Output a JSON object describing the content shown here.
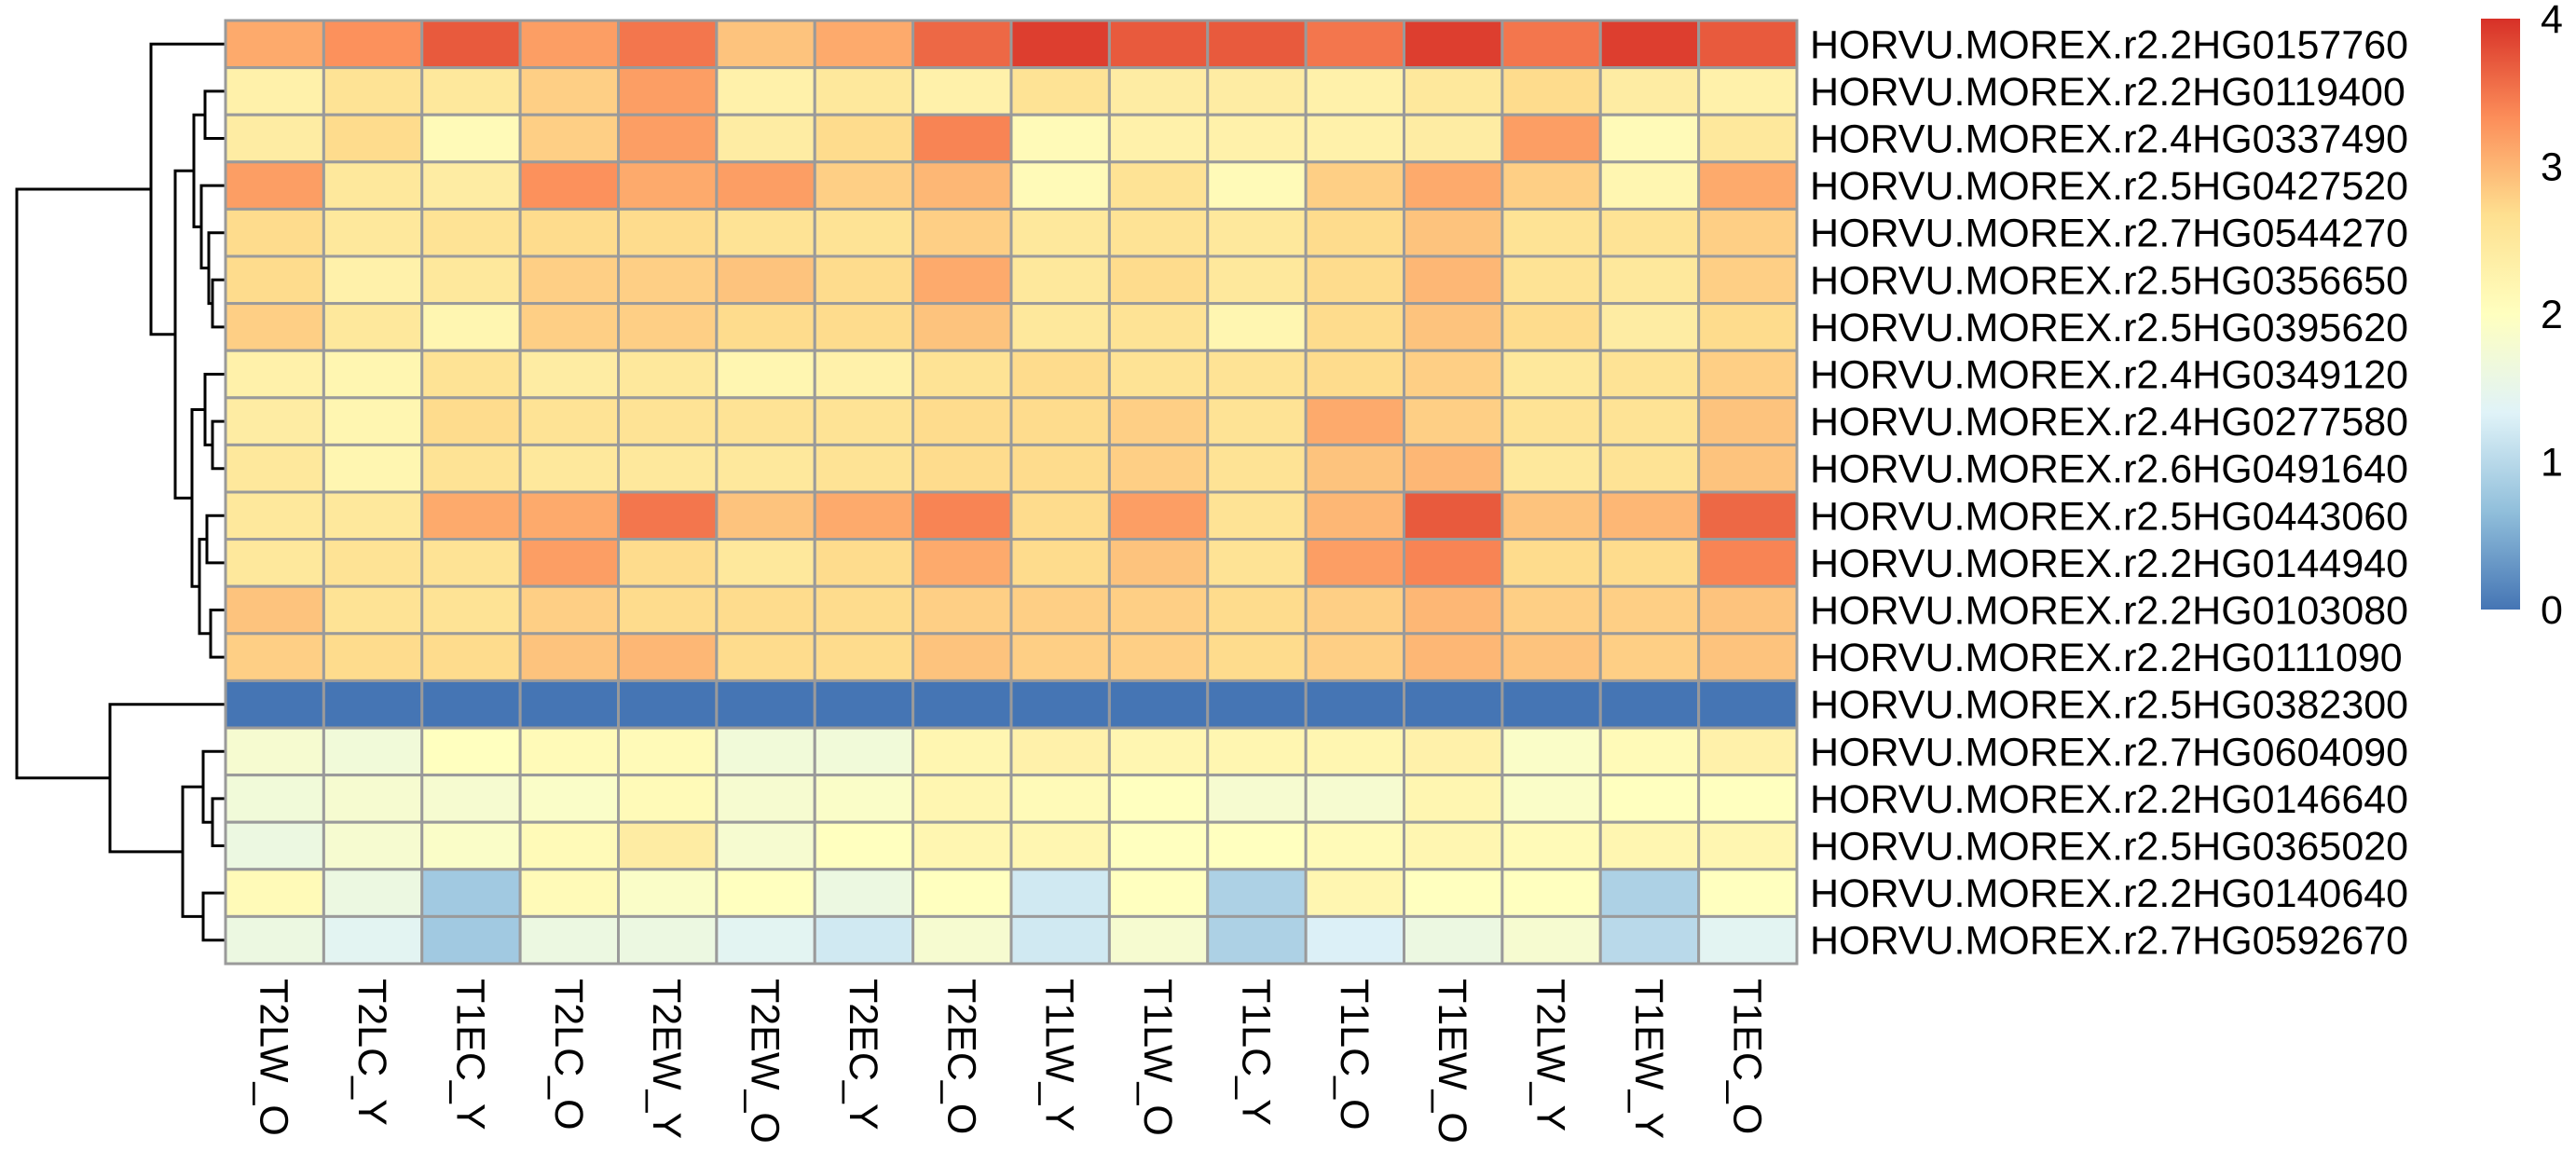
{
  "chart_data": {
    "type": "heatmap",
    "title": "",
    "xlabel": "",
    "ylabel": "",
    "columns": [
      "T2LW_O",
      "T2LC_Y",
      "T1EC_Y",
      "T2LC_O",
      "T2EW_Y",
      "T2EW_O",
      "T2EC_Y",
      "T2EC_O",
      "T1LW_Y",
      "T1LW_O",
      "T1LC_Y",
      "T1LC_O",
      "T1EW_O",
      "T2LW_Y",
      "T1EW_Y",
      "T1EC_O"
    ],
    "rows": [
      "HORVU.MOREX.r2.2HG0157760",
      "HORVU.MOREX.r2.2HG0119400",
      "HORVU.MOREX.r2.4HG0337490",
      "HORVU.MOREX.r2.5HG0427520",
      "HORVU.MOREX.r2.7HG0544270",
      "HORVU.MOREX.r2.5HG0356650",
      "HORVU.MOREX.r2.5HG0395620",
      "HORVU.MOREX.r2.4HG0349120",
      "HORVU.MOREX.r2.4HG0277580",
      "HORVU.MOREX.r2.6HG0491640",
      "HORVU.MOREX.r2.5HG0443060",
      "HORVU.MOREX.r2.2HG0144940",
      "HORVU.MOREX.r2.2HG0103080",
      "HORVU.MOREX.r2.2HG0111090",
      "HORVU.MOREX.r2.5HG0382300",
      "HORVU.MOREX.r2.7HG0604090",
      "HORVU.MOREX.r2.2HG0146640",
      "HORVU.MOREX.r2.5HG0365020",
      "HORVU.MOREX.r2.2HG0140640",
      "HORVU.MOREX.r2.7HG0592670"
    ],
    "values": [
      [
        3.1,
        3.3,
        3.7,
        3.2,
        3.5,
        2.9,
        3.1,
        3.6,
        3.9,
        3.7,
        3.7,
        3.5,
        3.9,
        3.5,
        3.9,
        3.7
      ],
      [
        2.3,
        2.6,
        2.5,
        2.8,
        3.2,
        2.3,
        2.5,
        2.3,
        2.6,
        2.4,
        2.4,
        2.3,
        2.5,
        2.7,
        2.4,
        2.3
      ],
      [
        2.4,
        2.7,
        2.1,
        2.8,
        3.2,
        2.4,
        2.7,
        3.4,
        2.1,
        2.3,
        2.3,
        2.3,
        2.4,
        3.2,
        2.1,
        2.5
      ],
      [
        3.2,
        2.5,
        2.4,
        3.3,
        3.1,
        3.2,
        2.8,
        3.0,
        2.1,
        2.6,
        2.1,
        2.8,
        3.1,
        2.8,
        2.2,
        3.1
      ],
      [
        2.7,
        2.5,
        2.6,
        2.7,
        2.7,
        2.6,
        2.6,
        2.8,
        2.5,
        2.6,
        2.5,
        2.7,
        2.9,
        2.6,
        2.6,
        2.8
      ],
      [
        2.7,
        2.3,
        2.5,
        2.8,
        2.8,
        2.9,
        2.7,
        3.1,
        2.5,
        2.7,
        2.5,
        2.7,
        3.0,
        2.6,
        2.5,
        2.8
      ],
      [
        2.8,
        2.5,
        2.2,
        2.8,
        2.8,
        2.7,
        2.7,
        2.9,
        2.5,
        2.6,
        2.2,
        2.7,
        2.9,
        2.7,
        2.4,
        2.7
      ],
      [
        2.3,
        2.2,
        2.6,
        2.4,
        2.5,
        2.2,
        2.3,
        2.6,
        2.7,
        2.6,
        2.6,
        2.7,
        2.8,
        2.5,
        2.6,
        2.8
      ],
      [
        2.4,
        2.2,
        2.7,
        2.6,
        2.6,
        2.6,
        2.6,
        2.7,
        2.7,
        2.8,
        2.6,
        3.1,
        2.8,
        2.6,
        2.6,
        2.9
      ],
      [
        2.5,
        2.2,
        2.6,
        2.5,
        2.5,
        2.5,
        2.6,
        2.7,
        2.7,
        2.8,
        2.6,
        2.9,
        3.0,
        2.5,
        2.6,
        2.9
      ],
      [
        2.5,
        2.5,
        3.1,
        3.1,
        3.5,
        2.9,
        3.1,
        3.4,
        2.7,
        3.2,
        2.6,
        3.0,
        3.7,
        2.9,
        3.0,
        3.6
      ],
      [
        2.5,
        2.6,
        2.6,
        3.2,
        2.7,
        2.5,
        2.7,
        3.1,
        2.7,
        2.9,
        2.6,
        3.2,
        3.4,
        2.7,
        2.7,
        3.4
      ],
      [
        2.9,
        2.6,
        2.6,
        2.8,
        2.7,
        2.7,
        2.7,
        2.8,
        2.8,
        2.8,
        2.7,
        2.8,
        3.0,
        2.8,
        2.8,
        2.9
      ],
      [
        2.8,
        2.7,
        2.7,
        2.9,
        3.0,
        2.7,
        2.7,
        2.9,
        2.8,
        2.8,
        2.7,
        2.8,
        3.0,
        2.9,
        2.8,
        2.9
      ],
      [
        0.0,
        0.0,
        0.0,
        0.0,
        0.0,
        0.0,
        0.0,
        0.0,
        0.0,
        0.0,
        0.0,
        0.0,
        0.0,
        0.0,
        0.0,
        0.0
      ],
      [
        1.8,
        1.7,
        2.0,
        2.1,
        2.1,
        1.7,
        1.7,
        2.2,
        2.3,
        2.2,
        2.2,
        2.2,
        2.3,
        1.9,
        2.1,
        2.3
      ],
      [
        1.7,
        1.8,
        1.8,
        1.9,
        2.1,
        1.8,
        1.9,
        2.2,
        2.1,
        2.0,
        1.8,
        1.8,
        2.2,
        1.9,
        2.0,
        2.0
      ],
      [
        1.6,
        1.8,
        1.9,
        2.1,
        2.4,
        1.8,
        2.0,
        2.2,
        2.2,
        2.0,
        2.0,
        2.1,
        2.2,
        2.1,
        2.2,
        2.2
      ],
      [
        2.1,
        1.6,
        0.8,
        2.1,
        1.9,
        2.0,
        1.6,
        2.0,
        1.2,
        2.0,
        0.9,
        2.2,
        2.0,
        2.0,
        0.9,
        2.0
      ],
      [
        1.6,
        1.4,
        0.8,
        1.6,
        1.6,
        1.4,
        1.2,
        1.8,
        1.2,
        1.8,
        0.9,
        1.3,
        1.6,
        1.8,
        1.0,
        1.4
      ]
    ],
    "colorbar": {
      "min": 0,
      "max": 4,
      "ticks": [
        "0",
        "1",
        "2",
        "3",
        "4"
      ],
      "colors": [
        "#4575b4",
        "#91bfdb",
        "#e0f3f8",
        "#ffffbf",
        "#fee090",
        "#fc8d59",
        "#d73027"
      ]
    },
    "row_dendrogram": true,
    "legend_position": "top-right"
  }
}
